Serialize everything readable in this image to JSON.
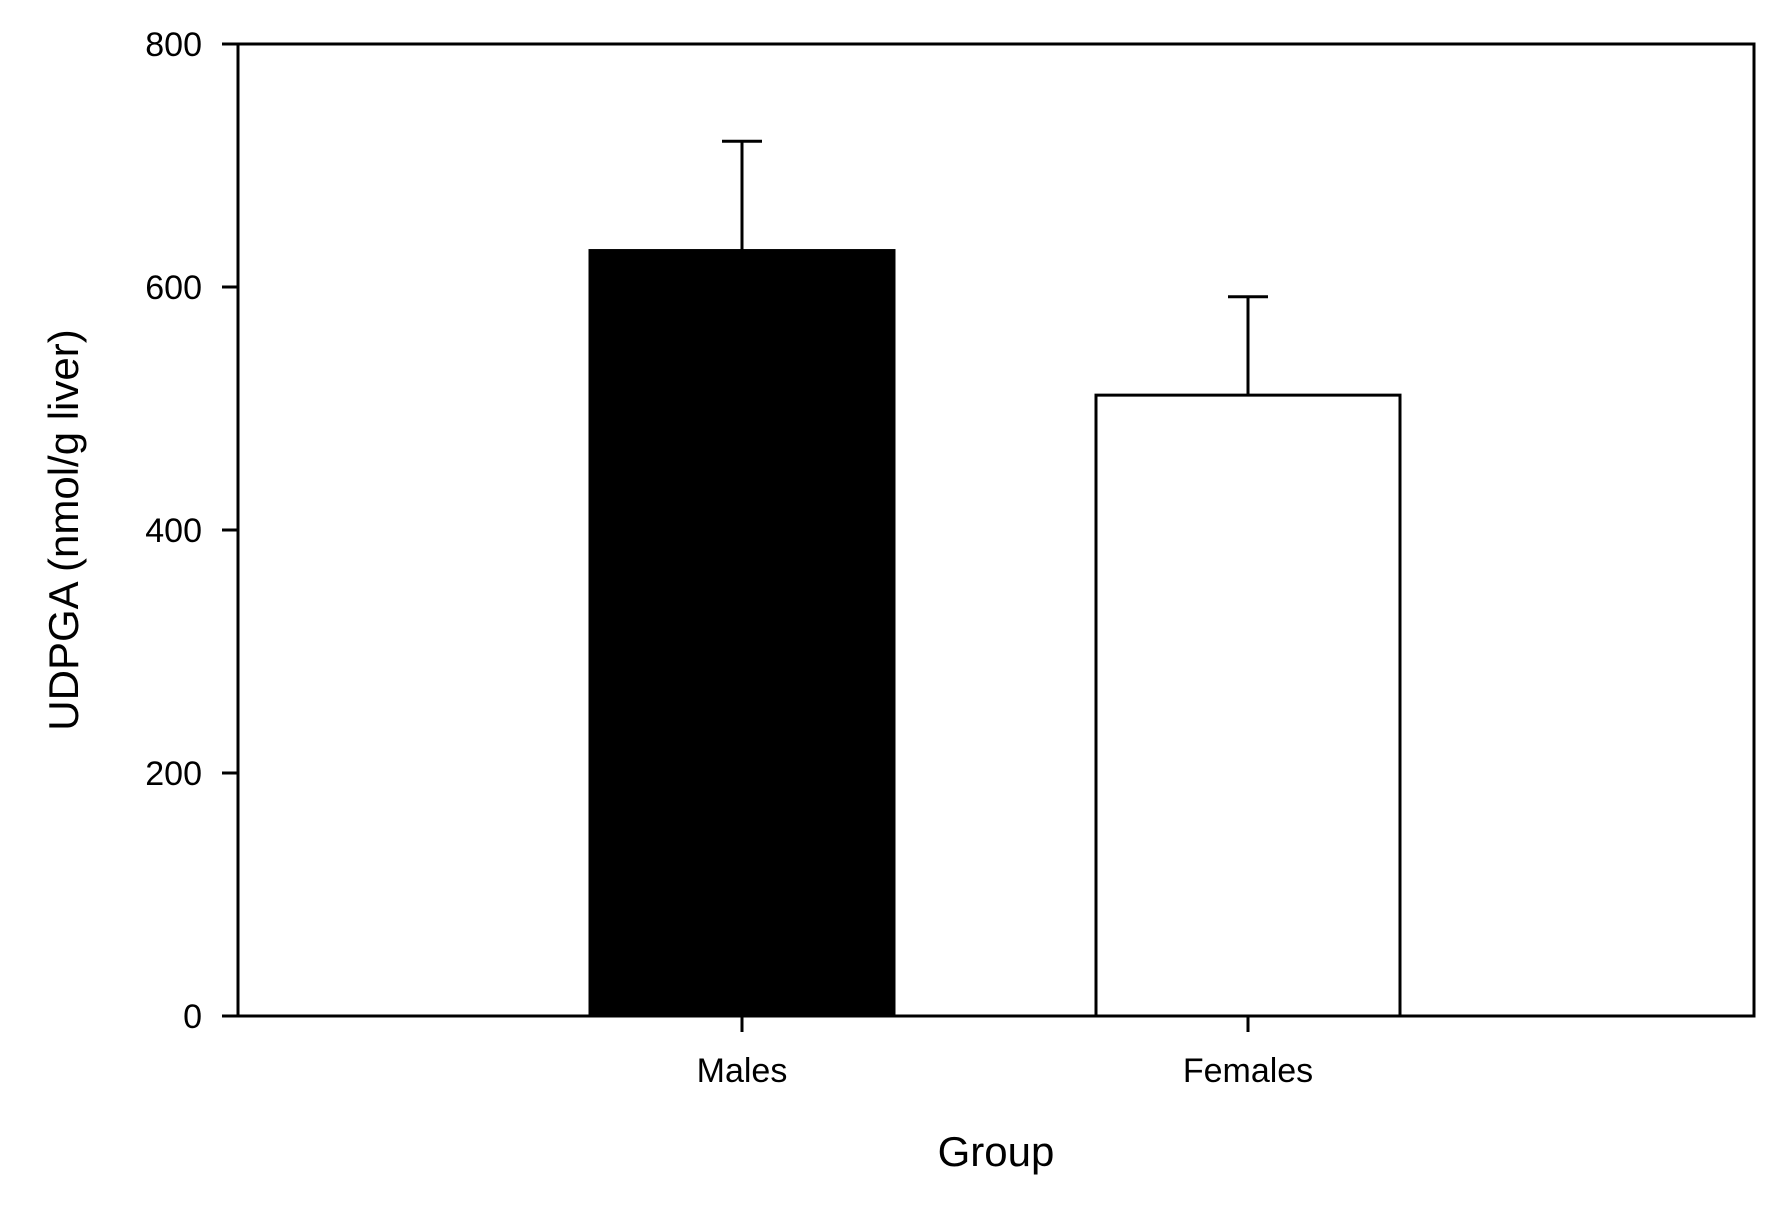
{
  "chart_data": {
    "type": "bar",
    "title": "",
    "xlabel": "Group",
    "ylabel": "UDPGA (nmol/g liver)",
    "categories": [
      "Males",
      "Females"
    ],
    "values": [
      630,
      511
    ],
    "errors": [
      90,
      81
    ],
    "fills": [
      "#000000",
      "#ffffff"
    ],
    "ylim": [
      0,
      800
    ],
    "yticks": [
      0,
      200,
      400,
      600,
      800
    ],
    "grid": false,
    "legend": "none"
  }
}
